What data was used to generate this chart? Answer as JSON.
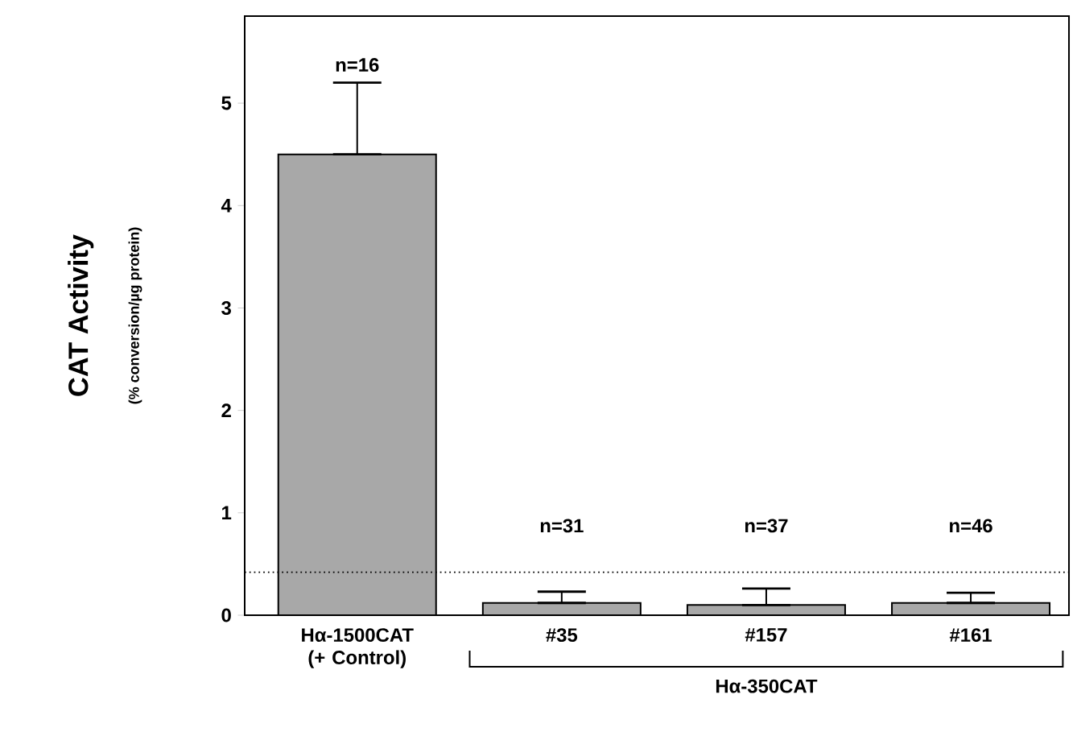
{
  "chart_data": {
    "type": "bar",
    "ylabel": "CAT Activity",
    "categories": [
      "Hα-1500CAT (+ Control)",
      "#35",
      "#157",
      "#161"
    ],
    "values": [
      4.5,
      0.12,
      0.1,
      0.12
    ],
    "errors": [
      [
        4.5,
        5.2
      ],
      [
        0.12,
        0.23
      ],
      [
        0.1,
        0.26
      ],
      [
        0.12,
        0.22
      ]
    ],
    "color": "#a8a8a8",
    "ylim": [
      0,
      5.85
    ],
    "yticks": [
      0,
      1,
      2,
      3,
      4,
      5
    ],
    "ref_lines": [
      {
        "axis": "y",
        "value": 0.42,
        "line_style": "dotted"
      }
    ],
    "annotations": [
      "(% conversion/µg protein)",
      "Hα-350CAT",
      "n=16",
      "n=31",
      "n=37",
      "n=46"
    ]
  }
}
